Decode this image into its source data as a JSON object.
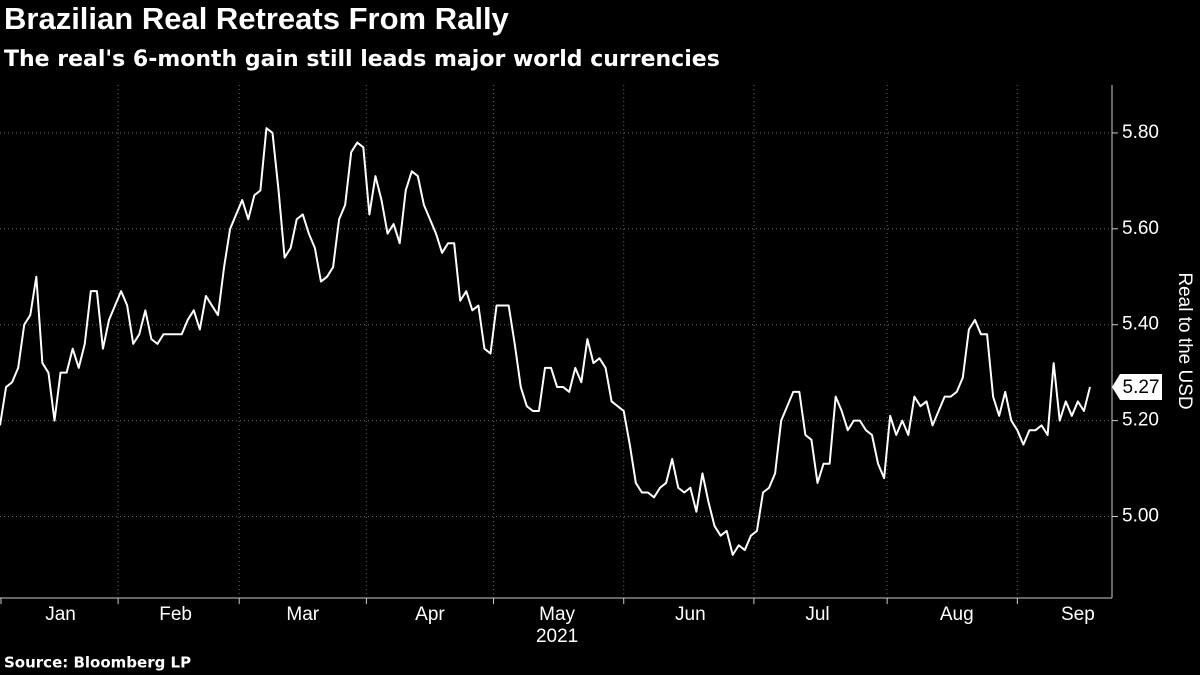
{
  "chart_data": {
    "type": "line",
    "title": "Brazilian Real Retreats From Rally",
    "subtitle": "The real's 6-month gain still leads major world currencies",
    "source": "Source: Bloomberg LP",
    "y_axis_label": "Real to the USD",
    "x_sublabel": "2021",
    "color": "#ffffff",
    "grid": true,
    "ylim": [
      4.83,
      5.9
    ],
    "yticks": [
      {
        "value": 5.0,
        "label": "5.00"
      },
      {
        "value": 5.2,
        "label": "5.20"
      },
      {
        "value": 5.4,
        "label": "5.40"
      },
      {
        "value": 5.6,
        "label": "5.60"
      },
      {
        "value": 5.8,
        "label": "5.80"
      }
    ],
    "categories": [
      null,
      null,
      null,
      null,
      null,
      null,
      null,
      null,
      null,
      null,
      "Jan",
      null,
      null,
      null,
      null,
      null,
      null,
      null,
      null,
      null,
      null,
      null,
      null,
      null,
      null,
      null,
      null,
      null,
      null,
      "Feb",
      null,
      null,
      null,
      null,
      null,
      null,
      null,
      null,
      null,
      null,
      null,
      null,
      null,
      null,
      null,
      null,
      null,
      null,
      null,
      null,
      "Mar",
      null,
      null,
      null,
      null,
      null,
      null,
      null,
      null,
      null,
      null,
      null,
      null,
      null,
      null,
      null,
      null,
      null,
      null,
      null,
      null,
      "Apr",
      null,
      null,
      null,
      null,
      null,
      null,
      null,
      null,
      null,
      null,
      null,
      null,
      null,
      null,
      null,
      null,
      null,
      null,
      null,
      null,
      "May",
      null,
      null,
      null,
      null,
      null,
      null,
      null,
      null,
      null,
      null,
      null,
      null,
      null,
      null,
      null,
      null,
      null,
      null,
      null,
      null,
      null,
      "Jun",
      null,
      null,
      null,
      null,
      null,
      null,
      null,
      null,
      null,
      null,
      null,
      null,
      null,
      null,
      null,
      null,
      null,
      null,
      null,
      null,
      "Jul",
      null,
      null,
      null,
      null,
      null,
      null,
      null,
      null,
      null,
      null,
      null,
      null,
      null,
      null,
      null,
      null,
      null,
      null,
      null,
      null,
      null,
      null,
      "Aug",
      null,
      null,
      null,
      null,
      null,
      null,
      null,
      null,
      null,
      null,
      null,
      null,
      null,
      null,
      null,
      null,
      null,
      null,
      null,
      "Sep",
      null,
      null
    ],
    "values": [
      5.19,
      5.27,
      5.28,
      5.31,
      5.4,
      5.42,
      5.5,
      5.32,
      5.3,
      5.2,
      5.3,
      5.3,
      5.35,
      5.31,
      5.36,
      5.47,
      5.47,
      5.35,
      5.41,
      5.44,
      5.47,
      5.44,
      5.36,
      5.38,
      5.43,
      5.37,
      5.36,
      5.38,
      5.38,
      5.38,
      5.38,
      5.41,
      5.43,
      5.39,
      5.46,
      5.44,
      5.42,
      5.52,
      5.6,
      5.63,
      5.66,
      5.62,
      5.67,
      5.68,
      5.81,
      5.8,
      5.68,
      5.54,
      5.56,
      5.62,
      5.63,
      5.59,
      5.56,
      5.49,
      5.5,
      5.52,
      5.62,
      5.65,
      5.76,
      5.78,
      5.77,
      5.63,
      5.71,
      5.66,
      5.59,
      5.61,
      5.57,
      5.68,
      5.72,
      5.71,
      5.65,
      5.62,
      5.59,
      5.55,
      5.57,
      5.57,
      5.45,
      5.47,
      5.43,
      5.44,
      5.35,
      5.34,
      5.44,
      5.44,
      5.44,
      5.36,
      5.27,
      5.23,
      5.22,
      5.22,
      5.31,
      5.31,
      5.27,
      5.27,
      5.26,
      5.31,
      5.28,
      5.37,
      5.32,
      5.33,
      5.31,
      5.24,
      5.23,
      5.22,
      5.15,
      5.07,
      5.05,
      5.05,
      5.04,
      5.06,
      5.07,
      5.12,
      5.06,
      5.05,
      5.06,
      5.01,
      5.09,
      5.03,
      4.98,
      4.96,
      4.97,
      4.92,
      4.94,
      4.93,
      4.96,
      4.97,
      5.05,
      5.06,
      5.09,
      5.2,
      5.23,
      5.26,
      5.26,
      5.17,
      5.16,
      5.07,
      5.11,
      5.11,
      5.25,
      5.22,
      5.18,
      5.2,
      5.2,
      5.18,
      5.17,
      5.11,
      5.08,
      5.21,
      5.17,
      5.2,
      5.17,
      5.25,
      5.23,
      5.24,
      5.19,
      5.22,
      5.25,
      5.25,
      5.26,
      5.29,
      5.39,
      5.41,
      5.38,
      5.38,
      5.25,
      5.21,
      5.26,
      5.2,
      5.18,
      5.15,
      5.18,
      5.18,
      5.19,
      5.17,
      5.32,
      5.2,
      5.24,
      5.21,
      5.24,
      5.22,
      5.27
    ]
  }
}
